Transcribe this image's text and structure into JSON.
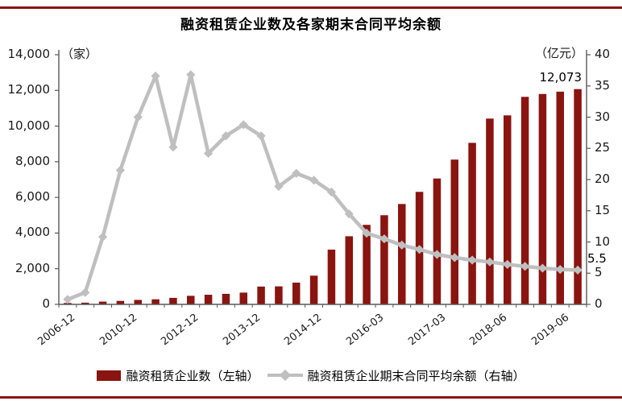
{
  "title": "融资租赁企业数及各家期末合同平均余额",
  "legend": {
    "items": [
      {
        "label": "融资租赁企业数（左轴）",
        "type": "bar",
        "color": "#8a1410"
      },
      {
        "label": "融资租赁企业期末合同平均余额（右轴）",
        "type": "line",
        "color": "#bfbfbf"
      }
    ]
  },
  "chart_data": {
    "type": "combo",
    "n_points": 30,
    "grid": false,
    "legend_position": "bottom",
    "x_visible_tick_labels": [
      "2006-12",
      "2010-12",
      "2012-12",
      "2013-12",
      "2014-12",
      "2016-03",
      "2017-03",
      "2018-06",
      "2019-06"
    ],
    "left_axis": {
      "label": "（家）",
      "min": 0,
      "max": 14000,
      "tick_step": 2000,
      "tick_labels": [
        "0",
        "2,000",
        "4,000",
        "6,000",
        "8,000",
        "10,000",
        "12,000",
        "14,000"
      ]
    },
    "right_axis": {
      "label": "（亿元）",
      "min": 0,
      "max": 40,
      "tick_step": 5,
      "tick_labels": [
        "0",
        "5",
        "10",
        "15",
        "20",
        "25",
        "30",
        "35",
        "40"
      ]
    },
    "series": [
      {
        "name": "融资租赁企业数（左轴）",
        "type": "bar",
        "axis": "left",
        "color": "#8a1410",
        "values": [
          80,
          95,
          155,
          195,
          250,
          285,
          365,
          480,
          540,
          590,
          660,
          1000,
          1010,
          1220,
          1610,
          3070,
          3820,
          4460,
          5000,
          5630,
          6310,
          7060,
          8120,
          9060,
          10420,
          10600,
          11640,
          11800,
          11930,
          12073
        ]
      },
      {
        "name": "融资租赁企业期末合同平均余额（右轴）",
        "type": "line",
        "axis": "right",
        "color": "#bfbfbf",
        "values": [
          0.8,
          1.9,
          10.8,
          21.5,
          30.0,
          36.6,
          25.2,
          36.8,
          24.2,
          27.0,
          28.8,
          27.0,
          18.9,
          21.0,
          19.9,
          18.0,
          14.5,
          11.4,
          10.5,
          9.5,
          8.8,
          8.0,
          7.5,
          7.1,
          6.8,
          6.4,
          6.1,
          5.8,
          5.6,
          5.5
        ]
      }
    ],
    "data_labels": {
      "bar_last": "12,073",
      "line_last": "5.5"
    }
  }
}
